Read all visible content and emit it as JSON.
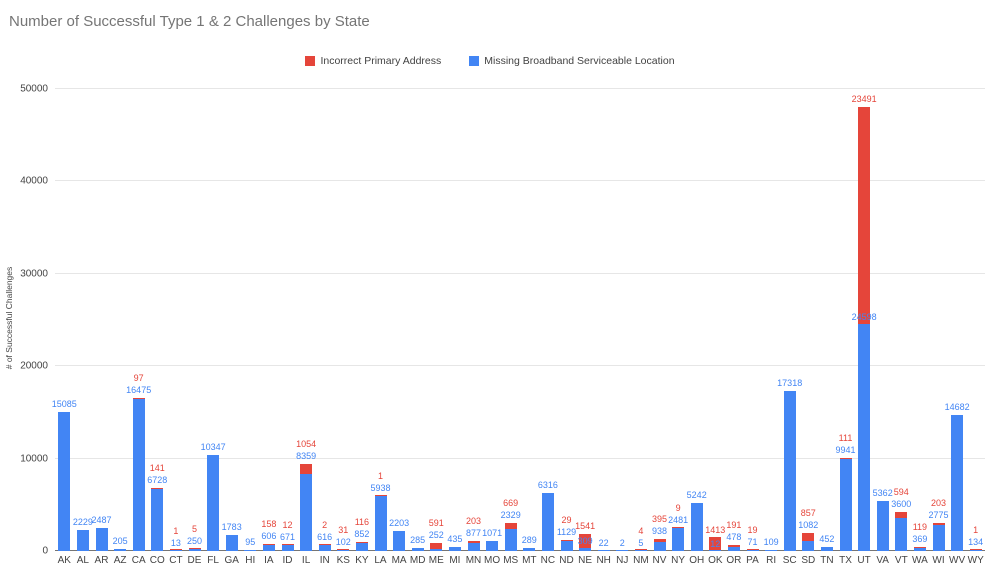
{
  "title": "Number of Successful Type 1 & 2 Challenges by State",
  "legend": {
    "items": [
      {
        "label": "Incorrect Primary Address",
        "color": "#e5453a"
      },
      {
        "label": "Missing Broadband Serviceable Location",
        "color": "#4285f4"
      }
    ]
  },
  "y_axis": {
    "title": "# of Successful Challenges",
    "ticks": [
      0,
      10000,
      20000,
      30000,
      40000,
      50000
    ]
  },
  "chart_data": {
    "type": "bar",
    "stacked": true,
    "title": "Number of Successful Type 1 & 2 Challenges by State",
    "xlabel": "",
    "ylabel": "# of Successful Challenges",
    "ylim": [
      0,
      50000
    ],
    "grid": true,
    "legend_position": "top",
    "categories": [
      "AK",
      "AL",
      "AR",
      "AZ",
      "CA",
      "CO",
      "CT",
      "DE",
      "FL",
      "GA",
      "HI",
      "IA",
      "ID",
      "IL",
      "IN",
      "KS",
      "KY",
      "LA",
      "MA",
      "MD",
      "ME",
      "MI",
      "MN",
      "MO",
      "MS",
      "MT",
      "NC",
      "ND",
      "NE",
      "NH",
      "NJ",
      "NM",
      "NV",
      "NY",
      "OH",
      "OK",
      "OR",
      "PA",
      "RI",
      "SC",
      "SD",
      "TN",
      "TX",
      "UT",
      "VA",
      "VT",
      "WA",
      "WI",
      "WV",
      "WY"
    ],
    "series": [
      {
        "name": "Incorrect Primary Address",
        "color": "#e5453a",
        "values": [
          0,
          0,
          0,
          0,
          97,
          141,
          1,
          5,
          0,
          0,
          0,
          158,
          12,
          1054,
          2,
          31,
          116,
          1,
          0,
          0,
          591,
          0,
          203,
          0,
          669,
          0,
          0,
          29,
          1541,
          0,
          0,
          4,
          395,
          9,
          0,
          1413,
          191,
          19,
          0,
          0,
          857,
          0,
          111,
          23491,
          0,
          594,
          119,
          203,
          0,
          1
        ]
      },
      {
        "name": "Missing Broadband Serviceable Location",
        "color": "#4285f4",
        "values": [
          15085,
          2229,
          2487,
          205,
          16475,
          6728,
          13,
          250,
          10347,
          1783,
          95,
          606,
          671,
          8359,
          616,
          102,
          852,
          5938,
          2203,
          285,
          252,
          435,
          877,
          1071,
          2329,
          289,
          6316,
          1129,
          309,
          22,
          2,
          5,
          938,
          2481,
          5242,
          12,
          478,
          71,
          109,
          17318,
          1082,
          452,
          9941,
          24598,
          5362,
          3600,
          369,
          2775,
          14682,
          134
        ]
      }
    ]
  }
}
